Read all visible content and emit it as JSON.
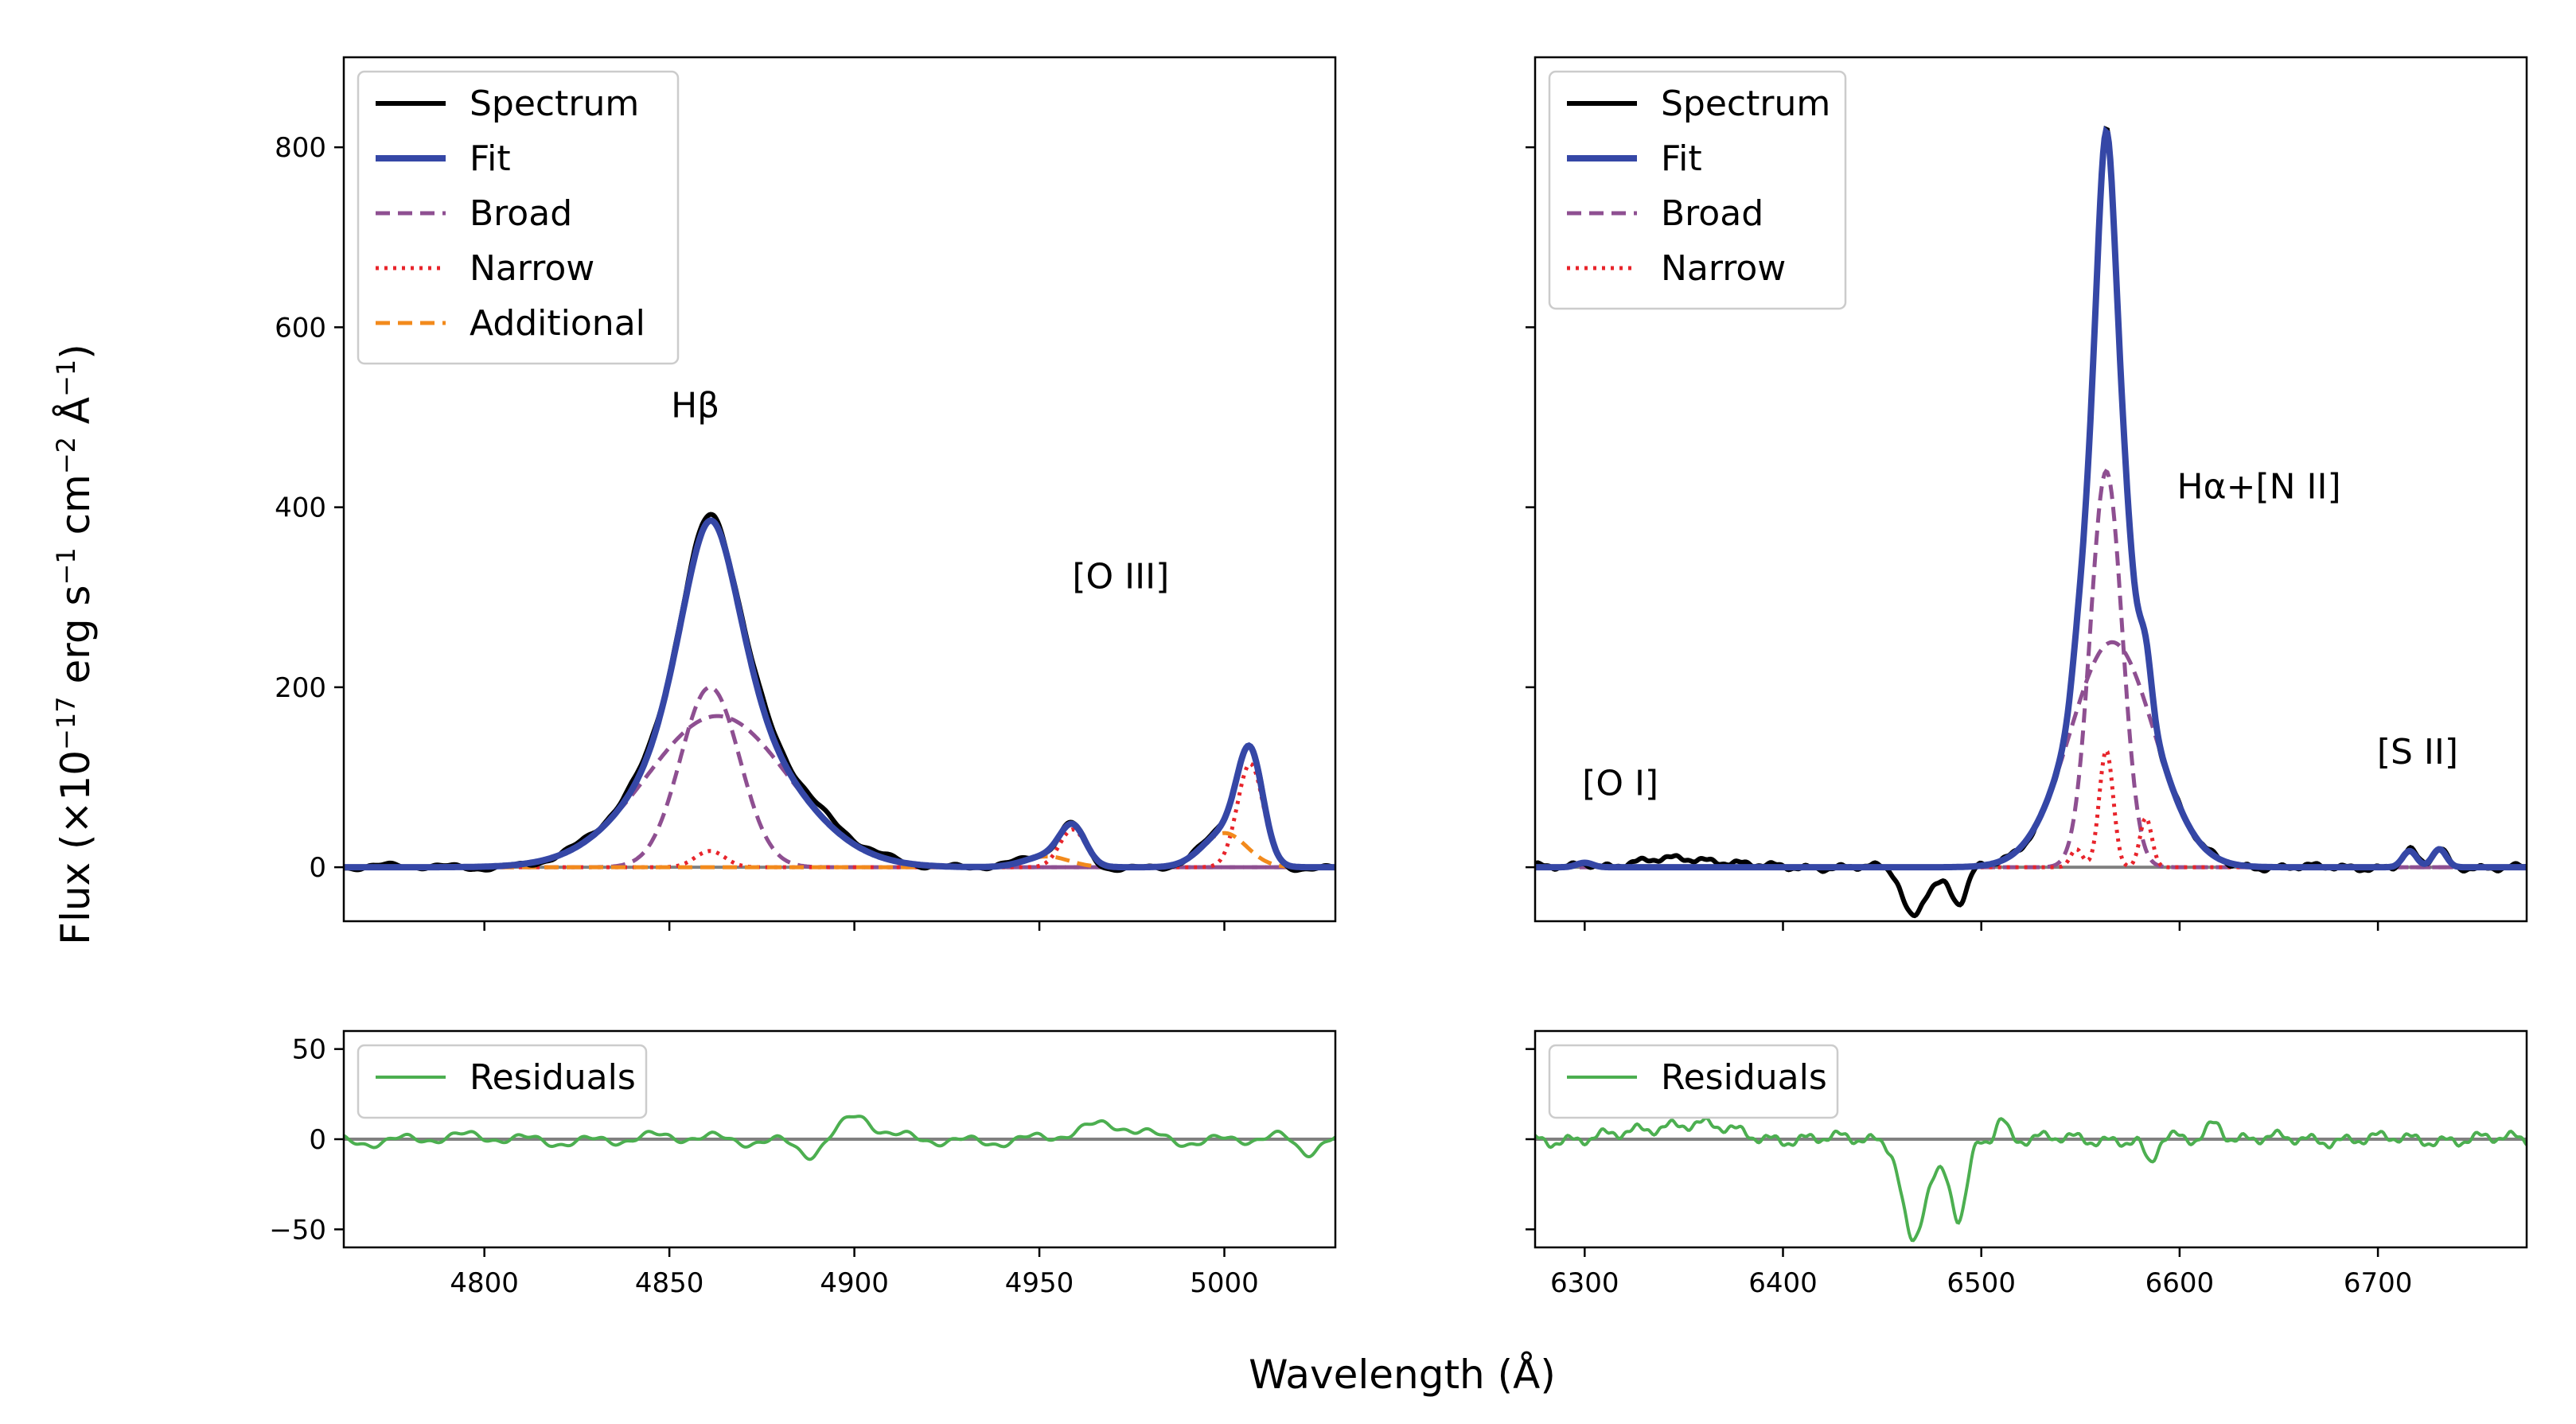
{
  "figure": {
    "xlabel": "Wavelength (Å)",
    "ylabel_main": "Flux (×10",
    "ylabel_exp1": "−17",
    "ylabel_mid1": " erg s",
    "ylabel_exp2": "−1",
    "ylabel_mid2": " cm",
    "ylabel_exp3": "−2",
    "ylabel_mid3": " Å",
    "ylabel_exp4": "−1",
    "ylabel_end": ")"
  },
  "colors": {
    "spectrum": "#000000",
    "fit": "#3547a6",
    "broad": "#8e4f91",
    "narrow": "#e8242b",
    "additional": "#f28a1c",
    "residuals": "#4caf50",
    "zero_line": "#808080"
  },
  "chart_data": [
    {
      "type": "line",
      "panel": "left-main",
      "title": "",
      "xlim": [
        4762,
        5030
      ],
      "ylim": [
        -60,
        900
      ],
      "yticks": [
        0,
        200,
        400,
        600,
        800
      ],
      "ytick_labels": [
        "0",
        "200",
        "400",
        "600",
        "800"
      ],
      "xticks": [
        4800,
        4850,
        4900,
        4950,
        5000
      ],
      "xtick_labels": [
        "4800",
        "4850",
        "4900",
        "4950",
        "5000"
      ],
      "legend": [
        "Spectrum",
        "Fit",
        "Broad",
        "Narrow",
        "Additional"
      ],
      "legend_position": "top-left",
      "annotations": [
        {
          "text": "Hβ",
          "x": 4857,
          "y": 500
        },
        {
          "text": "[O III]",
          "x": 4972,
          "y": 310
        }
      ],
      "series": [
        {
          "name": "Broad",
          "components": [
            {
              "type": "gauss",
              "center": 4863,
              "amp": 168,
              "sigma": 19
            },
            {
              "type": "gauss",
              "center": 4861,
              "amp": 200,
              "sigma": 8
            }
          ]
        },
        {
          "name": "Narrow",
          "components": [
            {
              "type": "gauss",
              "center": 4861,
              "amp": 18,
              "sigma": 4
            },
            {
              "type": "gauss",
              "center": 4959,
              "amp": 42,
              "sigma": 3.5
            },
            {
              "type": "gauss",
              "center": 5007,
              "amp": 115,
              "sigma": 3.5
            }
          ]
        },
        {
          "name": "Additional",
          "components": [
            {
              "type": "gauss",
              "center": 4952,
              "amp": 12,
              "sigma": 6
            },
            {
              "type": "gauss",
              "center": 5000,
              "amp": 38,
              "sigma": 6
            }
          ]
        }
      ]
    },
    {
      "type": "line",
      "panel": "right-main",
      "title": "",
      "xlim": [
        6275,
        6775
      ],
      "ylim": [
        -60,
        900
      ],
      "yticks": [
        0,
        200,
        400,
        600,
        800
      ],
      "xticks": [
        6300,
        6400,
        6500,
        6600,
        6700
      ],
      "xtick_labels": [
        "6300",
        "6400",
        "6500",
        "6600",
        "6700"
      ],
      "legend": [
        "Spectrum",
        "Fit",
        "Broad",
        "Narrow"
      ],
      "legend_position": "top-left",
      "annotations": [
        {
          "text": "[O I]",
          "x": 6318,
          "y": 80
        },
        {
          "text": "Hα+[N II]",
          "x": 6640,
          "y": 410
        },
        {
          "text": "[S II]",
          "x": 6720,
          "y": 115
        }
      ],
      "series": [
        {
          "name": "Broad",
          "components": [
            {
              "type": "gauss",
              "center": 6566,
              "amp": 250,
              "sigma": 21
            },
            {
              "type": "gauss",
              "center": 6563,
              "amp": 440,
              "sigma": 8
            }
          ]
        },
        {
          "name": "Narrow",
          "components": [
            {
              "type": "gauss",
              "center": 6300,
              "amp": 5,
              "sigma": 4
            },
            {
              "type": "gauss",
              "center": 6548,
              "amp": 20,
              "sigma": 3
            },
            {
              "type": "gauss",
              "center": 6563,
              "amp": 130,
              "sigma": 3.5
            },
            {
              "type": "gauss",
              "center": 6583,
              "amp": 55,
              "sigma": 3
            },
            {
              "type": "gauss",
              "center": 6716,
              "amp": 18,
              "sigma": 3.5
            },
            {
              "type": "gauss",
              "center": 6731,
              "amp": 20,
              "sigma": 3.5
            }
          ]
        },
        {
          "name": "Spectrum_deviation",
          "components": [
            {
              "type": "gauss",
              "center": 6350,
              "amp": 10,
              "sigma": 20
            },
            {
              "type": "gauss",
              "center": 6465,
              "amp": -52,
              "sigma": 5
            },
            {
              "type": "gauss",
              "center": 6489,
              "amp": -38,
              "sigma": 4
            },
            {
              "type": "gauss",
              "center": 6477,
              "amp": -15,
              "sigma": 6
            }
          ]
        }
      ]
    },
    {
      "type": "line",
      "panel": "left-residuals",
      "xlim": [
        4762,
        5030
      ],
      "ylim": [
        -60,
        60
      ],
      "yticks": [
        -50,
        0,
        50
      ],
      "ytick_labels": [
        "−50",
        "0",
        "50"
      ],
      "legend": [
        "Residuals"
      ],
      "legend_position": "top-left",
      "series": [
        {
          "name": "Residuals",
          "values_desc": "noise ±8 around 0",
          "components": [
            {
              "type": "gauss",
              "center": 4901,
              "amp": 12,
              "sigma": 4
            },
            {
              "type": "gauss",
              "center": 4888,
              "amp": -7,
              "sigma": 3
            },
            {
              "type": "gauss",
              "center": 4970,
              "amp": 7,
              "sigma": 8
            },
            {
              "type": "gauss",
              "center": 5022,
              "amp": -8,
              "sigma": 3
            }
          ]
        }
      ]
    },
    {
      "type": "line",
      "panel": "right-residuals",
      "xlim": [
        6275,
        6775
      ],
      "ylim": [
        -60,
        60
      ],
      "yticks": [
        -50,
        0,
        50
      ],
      "legend": [
        "Residuals"
      ],
      "legend_position": "top-left",
      "series": [
        {
          "name": "Residuals",
          "components": [
            {
              "type": "gauss",
              "center": 6350,
              "amp": 9,
              "sigma": 20
            },
            {
              "type": "gauss",
              "center": 6465,
              "amp": -52,
              "sigma": 5
            },
            {
              "type": "gauss",
              "center": 6489,
              "amp": -40,
              "sigma": 4
            },
            {
              "type": "gauss",
              "center": 6477,
              "amp": -18,
              "sigma": 7
            },
            {
              "type": "gauss",
              "center": 6510,
              "amp": 12,
              "sigma": 3
            },
            {
              "type": "gauss",
              "center": 6585,
              "amp": -14,
              "sigma": 3
            },
            {
              "type": "gauss",
              "center": 6618,
              "amp": 10,
              "sigma": 4
            }
          ]
        }
      ]
    }
  ]
}
